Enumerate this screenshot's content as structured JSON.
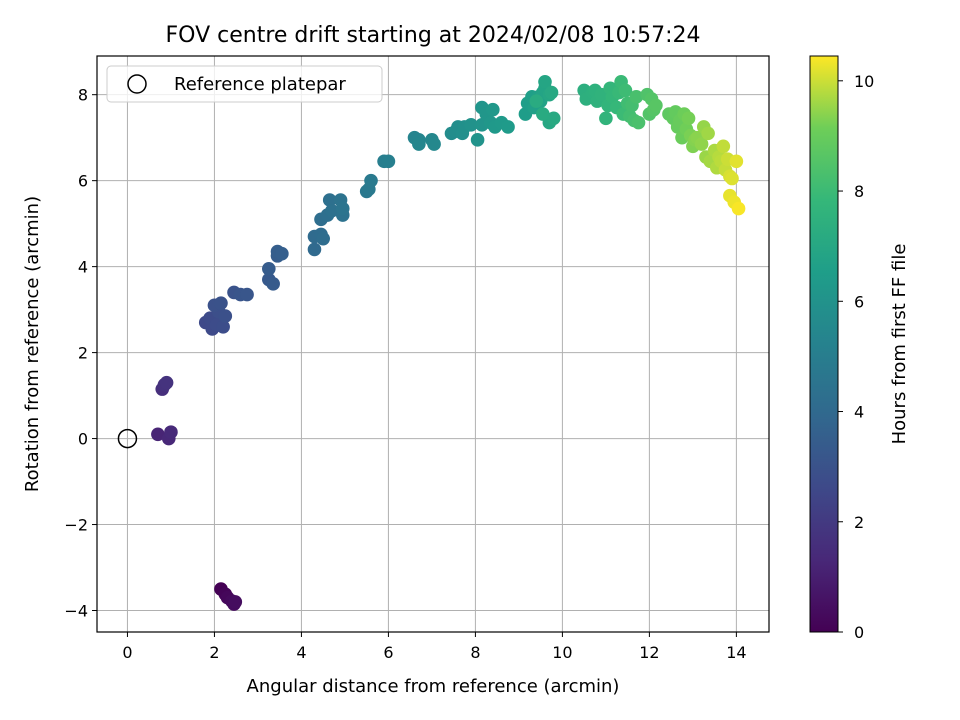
{
  "chart_data": {
    "type": "scatter",
    "title": "FOV centre drift starting at 2024/02/08 10:57:24",
    "xlabel": "Angular distance from reference (arcmin)",
    "ylabel": "Rotation from reference (arcmin)",
    "xlim": [
      -0.7,
      14.75
    ],
    "ylim": [
      -4.5,
      8.9
    ],
    "xticks": [
      0,
      2,
      4,
      6,
      8,
      10,
      12,
      14
    ],
    "yticks": [
      -4,
      -2,
      0,
      2,
      4,
      6,
      8
    ],
    "xtick_labels": [
      "0",
      "2",
      "4",
      "6",
      "8",
      "10",
      "12",
      "14"
    ],
    "ytick_labels": [
      "−4",
      "−2",
      "0",
      "2",
      "4",
      "6",
      "8"
    ],
    "grid": true,
    "legend": {
      "position": "top-left",
      "entries": [
        {
          "label": "Reference platepar",
          "marker": "open-circle"
        }
      ]
    },
    "reference_point": {
      "x": 0,
      "y": 0
    },
    "colorbar": {
      "label": "Hours from first FF file",
      "range": [
        0,
        10.45
      ],
      "ticks": [
        0,
        2,
        4,
        6,
        8,
        10
      ],
      "tick_labels": [
        "0",
        "2",
        "4",
        "6",
        "8",
        "10"
      ],
      "colormap": "viridis"
    },
    "series": [
      {
        "name": "FOV centre",
        "points": [
          [
            2.15,
            -3.5,
            0.0
          ],
          [
            2.25,
            -3.62,
            0.1
          ],
          [
            2.3,
            -3.7,
            0.2
          ],
          [
            2.4,
            -3.78,
            0.3
          ],
          [
            2.45,
            -3.85,
            0.35
          ],
          [
            2.48,
            -3.8,
            0.4
          ],
          [
            0.7,
            0.1,
            1.2
          ],
          [
            0.95,
            0.0,
            1.3
          ],
          [
            1.0,
            0.15,
            1.4
          ],
          [
            0.8,
            1.15,
            1.6
          ],
          [
            0.85,
            1.25,
            1.7
          ],
          [
            0.9,
            1.3,
            1.75
          ],
          [
            1.8,
            2.7,
            2.6
          ],
          [
            1.95,
            2.55,
            2.65
          ],
          [
            1.9,
            2.8,
            2.7
          ],
          [
            2.05,
            2.65,
            2.75
          ],
          [
            2.2,
            2.6,
            2.8
          ],
          [
            2.1,
            2.95,
            2.85
          ],
          [
            2.25,
            2.85,
            2.9
          ],
          [
            2.0,
            3.1,
            2.95
          ],
          [
            2.15,
            3.15,
            3.0
          ],
          [
            2.45,
            3.4,
            3.05
          ],
          [
            2.6,
            3.35,
            3.1
          ],
          [
            2.75,
            3.35,
            3.15
          ],
          [
            3.25,
            3.7,
            3.3
          ],
          [
            3.35,
            3.6,
            3.35
          ],
          [
            3.25,
            3.95,
            3.4
          ],
          [
            3.45,
            4.25,
            3.45
          ],
          [
            3.45,
            4.35,
            3.5
          ],
          [
            3.55,
            4.3,
            3.55
          ],
          [
            4.3,
            4.4,
            4.0
          ],
          [
            4.3,
            4.7,
            4.05
          ],
          [
            4.45,
            4.75,
            4.1
          ],
          [
            4.5,
            4.65,
            4.15
          ],
          [
            4.45,
            5.1,
            4.2
          ],
          [
            4.6,
            5.2,
            4.25
          ],
          [
            4.65,
            5.55,
            4.3
          ],
          [
            4.7,
            5.3,
            4.35
          ],
          [
            4.95,
            5.2,
            4.4
          ],
          [
            4.9,
            5.55,
            4.45
          ],
          [
            4.95,
            5.35,
            4.5
          ],
          [
            5.5,
            5.75,
            4.7
          ],
          [
            5.55,
            5.8,
            4.75
          ],
          [
            5.6,
            6.0,
            4.8
          ],
          [
            5.9,
            6.45,
            5.0
          ],
          [
            6.0,
            6.45,
            5.05
          ],
          [
            6.6,
            7.0,
            5.3
          ],
          [
            6.7,
            6.95,
            5.35
          ],
          [
            6.7,
            6.85,
            5.4
          ],
          [
            7.0,
            6.95,
            5.45
          ],
          [
            7.05,
            6.85,
            5.5
          ],
          [
            7.45,
            7.1,
            5.7
          ],
          [
            7.55,
            7.15,
            5.75
          ],
          [
            7.6,
            7.25,
            5.8
          ],
          [
            7.7,
            7.1,
            5.85
          ],
          [
            7.75,
            7.25,
            5.9
          ],
          [
            7.9,
            7.3,
            5.95
          ],
          [
            8.05,
            6.95,
            6.0
          ],
          [
            8.15,
            7.3,
            6.05
          ],
          [
            8.15,
            7.7,
            6.1
          ],
          [
            8.25,
            7.55,
            6.15
          ],
          [
            8.35,
            7.35,
            6.2
          ],
          [
            8.4,
            7.65,
            6.25
          ],
          [
            8.45,
            7.25,
            6.3
          ],
          [
            8.6,
            7.35,
            6.35
          ],
          [
            8.75,
            7.25,
            6.4
          ],
          [
            9.15,
            7.55,
            6.5
          ],
          [
            9.2,
            7.8,
            6.55
          ],
          [
            9.3,
            7.95,
            6.6
          ],
          [
            9.35,
            7.7,
            6.65
          ],
          [
            9.45,
            7.95,
            6.7
          ],
          [
            9.5,
            7.85,
            6.75
          ],
          [
            9.55,
            8.05,
            6.8
          ],
          [
            9.6,
            8.15,
            6.85
          ],
          [
            9.6,
            8.3,
            6.9
          ],
          [
            9.7,
            8.0,
            6.95
          ],
          [
            9.7,
            7.35,
            7.0
          ],
          [
            9.75,
            8.05,
            7.05
          ],
          [
            9.8,
            7.45,
            7.1
          ],
          [
            9.55,
            7.55,
            7.15
          ],
          [
            9.4,
            7.85,
            7.2
          ],
          [
            10.5,
            8.1,
            7.35
          ],
          [
            10.55,
            7.9,
            7.4
          ],
          [
            10.7,
            8.05,
            7.45
          ],
          [
            10.75,
            8.1,
            7.5
          ],
          [
            10.8,
            7.85,
            7.55
          ],
          [
            10.9,
            8.0,
            7.6
          ],
          [
            11.0,
            7.45,
            7.65
          ],
          [
            11.05,
            7.75,
            7.7
          ],
          [
            11.1,
            8.15,
            7.75
          ],
          [
            11.15,
            7.95,
            7.8
          ],
          [
            11.25,
            7.7,
            7.85
          ],
          [
            11.3,
            8.05,
            7.9
          ],
          [
            11.35,
            8.3,
            7.95
          ],
          [
            11.4,
            7.55,
            8.0
          ],
          [
            11.45,
            8.1,
            8.05
          ],
          [
            11.5,
            7.8,
            8.1
          ],
          [
            11.55,
            7.5,
            8.15
          ],
          [
            11.6,
            7.75,
            8.2
          ],
          [
            11.65,
            7.4,
            8.25
          ],
          [
            11.7,
            7.95,
            8.3
          ],
          [
            11.75,
            7.35,
            8.35
          ],
          [
            11.95,
            8.0,
            8.45
          ],
          [
            12.0,
            7.55,
            8.5
          ],
          [
            12.05,
            7.9,
            8.55
          ],
          [
            12.1,
            7.65,
            8.6
          ],
          [
            12.15,
            7.75,
            8.65
          ],
          [
            12.45,
            7.55,
            8.8
          ],
          [
            12.55,
            7.45,
            8.85
          ],
          [
            12.6,
            7.6,
            8.9
          ],
          [
            12.65,
            7.25,
            8.95
          ],
          [
            12.7,
            7.4,
            9.0
          ],
          [
            12.75,
            7.0,
            9.05
          ],
          [
            12.8,
            7.55,
            9.1
          ],
          [
            12.85,
            7.2,
            9.15
          ],
          [
            12.9,
            7.45,
            9.2
          ],
          [
            12.95,
            7.05,
            9.25
          ],
          [
            13.0,
            6.8,
            9.3
          ],
          [
            13.05,
            6.95,
            9.35
          ],
          [
            13.1,
            7.0,
            9.4
          ],
          [
            13.2,
            6.85,
            9.45
          ],
          [
            13.25,
            7.25,
            9.5
          ],
          [
            13.3,
            6.55,
            9.55
          ],
          [
            13.35,
            7.1,
            9.6
          ],
          [
            13.4,
            6.45,
            9.65
          ],
          [
            13.5,
            6.7,
            9.7
          ],
          [
            13.55,
            6.3,
            9.75
          ],
          [
            13.6,
            6.55,
            9.8
          ],
          [
            13.65,
            6.45,
            9.85
          ],
          [
            13.7,
            6.8,
            9.9
          ],
          [
            13.75,
            6.25,
            9.95
          ],
          [
            13.8,
            6.5,
            10.0
          ],
          [
            13.85,
            6.1,
            10.1
          ],
          [
            13.9,
            6.05,
            10.15
          ],
          [
            14.0,
            6.45,
            10.2
          ],
          [
            13.85,
            5.65,
            10.25
          ],
          [
            13.95,
            5.5,
            10.3
          ],
          [
            14.05,
            5.35,
            10.4
          ]
        ]
      }
    ]
  }
}
